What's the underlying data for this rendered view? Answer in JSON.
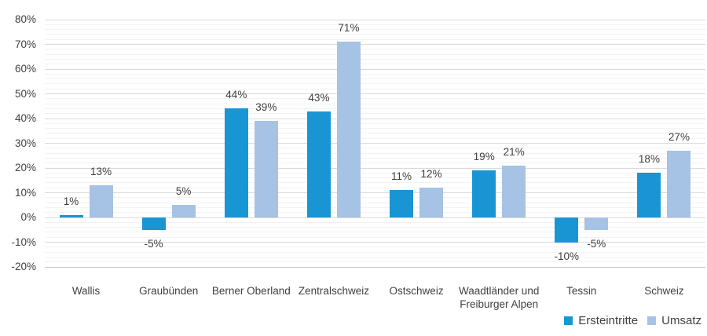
{
  "chart_data": {
    "type": "bar",
    "title": "",
    "xlabel": "",
    "ylabel": "",
    "categories": [
      "Wallis",
      "Graubünden",
      "Berner Oberland",
      "Zentralschweiz",
      "Ostschweiz",
      "Waadtländer und Freiburger Alpen",
      "Tessin",
      "Schweiz"
    ],
    "series": [
      {
        "name": "Ersteintritte",
        "color": "#1A95D4",
        "values": [
          1,
          -5,
          44,
          43,
          11,
          19,
          -10,
          18
        ],
        "labels": [
          "1%",
          "-5%",
          "44%",
          "43%",
          "11%",
          "19%",
          "-10%",
          "18%"
        ]
      },
      {
        "name": "Umsatz",
        "color": "#A6C2E5",
        "values": [
          13,
          5,
          39,
          71,
          12,
          21,
          -5,
          27
        ],
        "labels": [
          "13%",
          "5%",
          "39%",
          "71%",
          "12%",
          "21%",
          "-5%",
          "27%"
        ]
      }
    ],
    "ylim": [
      -20,
      80
    ],
    "y_major_step": 10,
    "y_minor_step": 2,
    "y_ticks": [
      {
        "value": 80,
        "label": "80%"
      },
      {
        "value": 70,
        "label": "70%"
      },
      {
        "value": 60,
        "label": "60%"
      },
      {
        "value": 50,
        "label": "50%"
      },
      {
        "value": 40,
        "label": "40%"
      },
      {
        "value": 30,
        "label": "30%"
      },
      {
        "value": 20,
        "label": "20%"
      },
      {
        "value": 10,
        "label": "10%"
      },
      {
        "value": 0,
        "label": "0%"
      },
      {
        "value": -10,
        "label": "-10%"
      },
      {
        "value": -20,
        "label": "-20%"
      }
    ],
    "grid": true,
    "legend_position": "bottom-right"
  },
  "colors": {
    "background": "#FFFFFF",
    "major_gridline": "#D9D9D9",
    "minor_gridline": "#F2F2F2",
    "axis_line": "#C6C6C6",
    "text": "#404040"
  }
}
